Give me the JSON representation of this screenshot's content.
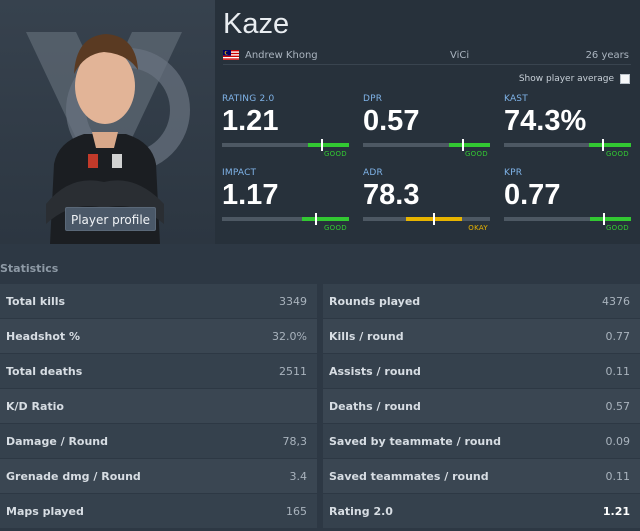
{
  "player": {
    "nickname": "Kaze",
    "real_name": "Andrew Khong",
    "team": "ViCi",
    "age": "26 years",
    "country_flag": "malaysia-flag-icon",
    "profile_button": "Player profile"
  },
  "controls": {
    "show_average_label": "Show player average",
    "show_average_checked": false
  },
  "summary_stats": [
    {
      "label": "RATING 2.0",
      "value": "1.21",
      "verdict": "GOOD",
      "bar_fraction": 0.79,
      "bar_color": "#32c832"
    },
    {
      "label": "DPR",
      "value": "0.57",
      "verdict": "GOOD",
      "bar_fraction": 0.79,
      "bar_color": "#32c832"
    },
    {
      "label": "KAST",
      "value": "74.3%",
      "verdict": "GOOD",
      "bar_fraction": 0.78,
      "bar_color": "#32c832"
    },
    {
      "label": "IMPACT",
      "value": "1.17",
      "verdict": "GOOD",
      "bar_fraction": 0.74,
      "bar_color": "#32c832"
    },
    {
      "label": "ADR",
      "value": "78.3",
      "verdict": "OKAY",
      "bar_fraction": 0.56,
      "bar_color": "#e8b400"
    },
    {
      "label": "KPR",
      "value": "0.77",
      "verdict": "GOOD",
      "bar_fraction": 0.79,
      "bar_color": "#32c832"
    }
  ],
  "statistics": {
    "title": "Statistics",
    "left": [
      {
        "label": "Total kills",
        "value": "3349"
      },
      {
        "label": "Headshot %",
        "value": "32.0%"
      },
      {
        "label": "Total deaths",
        "value": "2511"
      },
      {
        "label": "K/D Ratio",
        "value": ""
      },
      {
        "label": "Damage / Round",
        "value": "78,3"
      },
      {
        "label": "Grenade dmg / Round",
        "value": "3.4"
      },
      {
        "label": "Maps played",
        "value": "165"
      }
    ],
    "right": [
      {
        "label": "Rounds played",
        "value": "4376"
      },
      {
        "label": "Kills / round",
        "value": "0.77"
      },
      {
        "label": "Assists / round",
        "value": "0.11"
      },
      {
        "label": "Deaths / round",
        "value": "0.57"
      },
      {
        "label": "Saved by teammate / round",
        "value": "0.09"
      },
      {
        "label": "Saved teammates / round",
        "value": "0.11"
      },
      {
        "label": "Rating 2.0",
        "value": "1.21"
      }
    ]
  },
  "colors": {
    "good": "#32c832",
    "okay": "#e8b400",
    "label_blue": "#7fb3e8"
  }
}
